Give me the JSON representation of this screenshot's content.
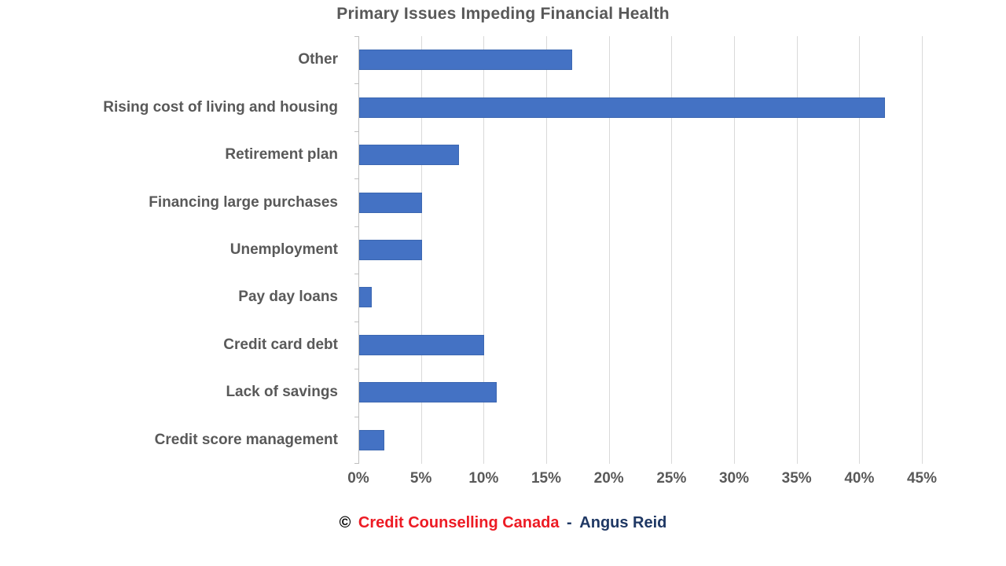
{
  "chart_data": {
    "type": "bar",
    "orientation": "horizontal",
    "title": "Primary Issues Impeding Financial Health",
    "categories": [
      "Other",
      "Rising cost of living and housing",
      "Retirement plan",
      "Financing large purchases",
      "Unemployment",
      "Pay day loans",
      "Credit card debt",
      "Lack of savings",
      "Credit score management"
    ],
    "values": [
      17,
      42,
      8,
      5,
      5,
      1,
      10,
      11,
      2
    ],
    "value_unit": "%",
    "x_ticks": [
      "0%",
      "5%",
      "10%",
      "15%",
      "20%",
      "25%",
      "30%",
      "35%",
      "40%",
      "45%"
    ],
    "x_tick_values": [
      0,
      5,
      10,
      15,
      20,
      25,
      30,
      35,
      40,
      45
    ],
    "xlim": [
      0,
      45
    ],
    "xlabel": "",
    "ylabel": "",
    "grid": true,
    "legend": false,
    "bar_color": "#4472C4",
    "gridline_color": "#D9D9D9",
    "axis_line_color": "#BFBFBF",
    "label_color": "#595959"
  },
  "footer": {
    "copyright_symbol": "©",
    "source_primary": "Credit Counselling Canada",
    "separator": "-",
    "source_secondary": "Angus Reid",
    "copyright_color": "#000000",
    "primary_color": "#ED1B24",
    "separator_color": "#1F3864",
    "secondary_color": "#1F3864"
  }
}
